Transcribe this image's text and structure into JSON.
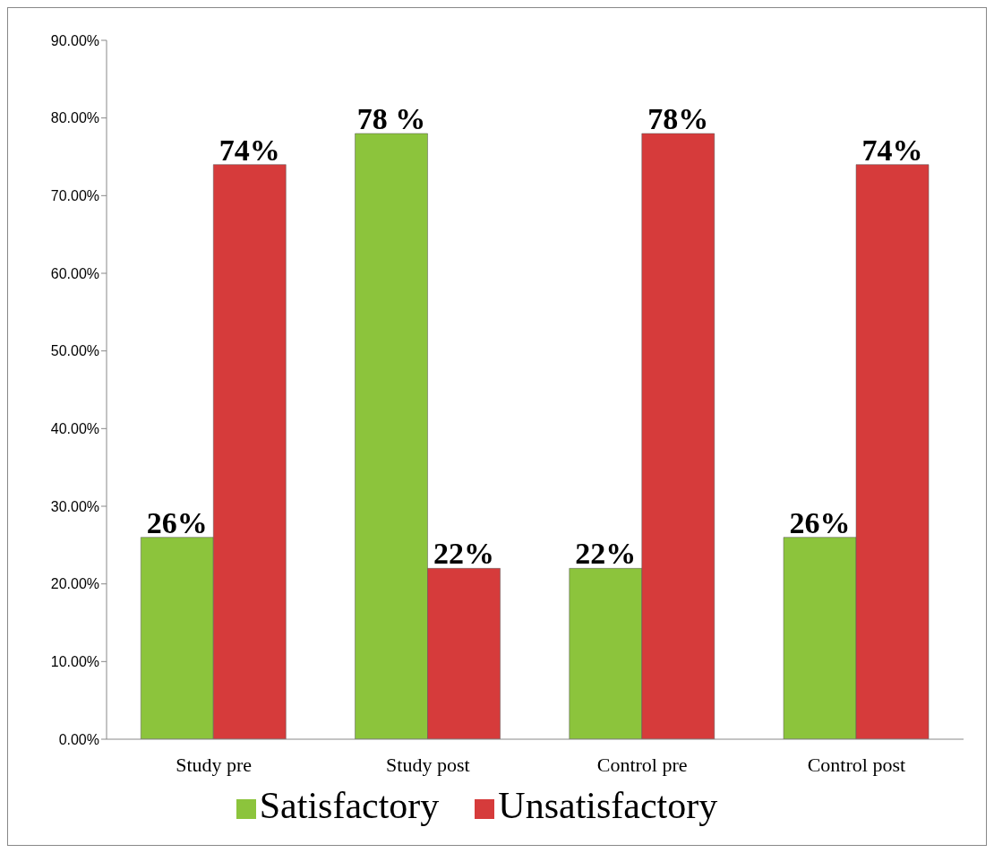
{
  "chart_data": {
    "type": "bar",
    "categories": [
      "Study pre",
      "Study post",
      "Control pre",
      "Control post"
    ],
    "series": [
      {
        "name": "Satisfactory",
        "color": "#8cc43c",
        "values": [
          26,
          78,
          22,
          26
        ],
        "value_labels": [
          "26%",
          "78 %",
          "22%",
          "26%"
        ]
      },
      {
        "name": "Unsatisfactory",
        "color": "#d63b3b",
        "values": [
          74,
          22,
          78,
          74
        ],
        "value_labels": [
          "74%",
          "22%",
          "78%",
          "74%"
        ]
      }
    ],
    "ylim": [
      0,
      90
    ],
    "yticks": [
      {
        "value": 0,
        "label": "0.00%"
      },
      {
        "value": 10,
        "label": "10.00%"
      },
      {
        "value": 20,
        "label": "20.00%"
      },
      {
        "value": 30,
        "label": "30.00%"
      },
      {
        "value": 40,
        "label": "40.00%"
      },
      {
        "value": 50,
        "label": "50.00%"
      },
      {
        "value": 60,
        "label": "60.00%"
      },
      {
        "value": 70,
        "label": "70.00%"
      },
      {
        "value": 80,
        "label": "80.00%"
      },
      {
        "value": 90,
        "label": "90.00%"
      }
    ],
    "grid": false,
    "legend": "bottom"
  }
}
